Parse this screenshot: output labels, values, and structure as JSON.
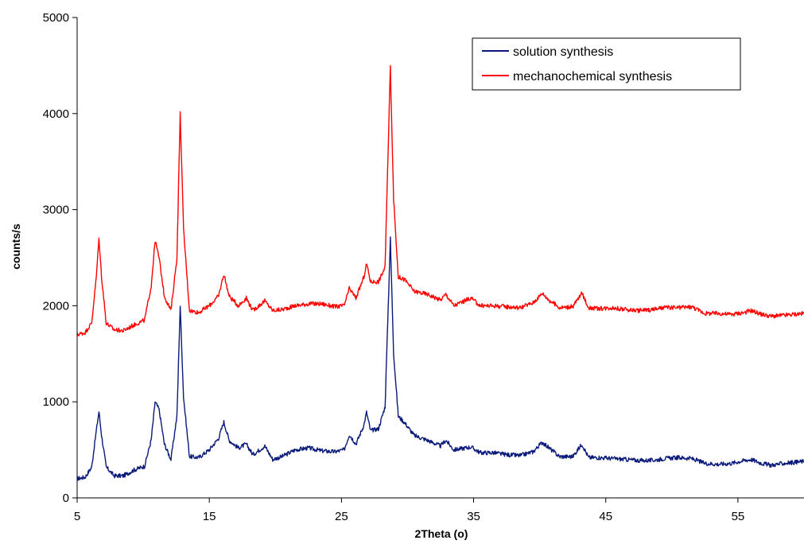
{
  "chart_data": {
    "type": "line",
    "xlabel": "2Theta (o)",
    "ylabel": "counts/s",
    "xlim": [
      5,
      60
    ],
    "ylim": [
      0,
      5000
    ],
    "x_ticks": [
      5,
      15,
      25,
      35,
      45,
      55
    ],
    "y_ticks": [
      0,
      1000,
      2000,
      3000,
      4000,
      5000
    ],
    "grid": false,
    "legend_position": "top-right",
    "series": [
      {
        "name": "solution synthesis",
        "color": "#0a1a7a",
        "points": [
          [
            5,
            200
          ],
          [
            5.6,
            215
          ],
          [
            6.1,
            320
          ],
          [
            6.45,
            700
          ],
          [
            6.65,
            900
          ],
          [
            6.85,
            650
          ],
          [
            7.2,
            320
          ],
          [
            7.8,
            230
          ],
          [
            8.5,
            230
          ],
          [
            9.3,
            290
          ],
          [
            10.1,
            330
          ],
          [
            10.6,
            600
          ],
          [
            10.9,
            1000
          ],
          [
            11.2,
            920
          ],
          [
            11.6,
            560
          ],
          [
            12.1,
            400
          ],
          [
            12.55,
            850
          ],
          [
            12.8,
            2000
          ],
          [
            13.05,
            1050
          ],
          [
            13.5,
            430
          ],
          [
            14.2,
            420
          ],
          [
            15,
            500
          ],
          [
            15.7,
            620
          ],
          [
            16.1,
            790
          ],
          [
            16.5,
            600
          ],
          [
            17.2,
            520
          ],
          [
            17.8,
            560
          ],
          [
            18.3,
            450
          ],
          [
            19.2,
            540
          ],
          [
            19.8,
            400
          ],
          [
            20.5,
            430
          ],
          [
            21.5,
            500
          ],
          [
            22.5,
            520
          ],
          [
            23.5,
            490
          ],
          [
            24.5,
            480
          ],
          [
            25.2,
            500
          ],
          [
            25.6,
            660
          ],
          [
            26.1,
            560
          ],
          [
            26.7,
            760
          ],
          [
            26.9,
            890
          ],
          [
            27.2,
            700
          ],
          [
            27.8,
            720
          ],
          [
            28.3,
            950
          ],
          [
            28.7,
            2700
          ],
          [
            28.95,
            1500
          ],
          [
            29.3,
            850
          ],
          [
            29.8,
            780
          ],
          [
            30.5,
            650
          ],
          [
            31.5,
            600
          ],
          [
            32.5,
            540
          ],
          [
            32.9,
            600
          ],
          [
            33.5,
            500
          ],
          [
            34.8,
            530
          ],
          [
            35.5,
            470
          ],
          [
            36.5,
            470
          ],
          [
            37.5,
            450
          ],
          [
            38.5,
            440
          ],
          [
            39.5,
            480
          ],
          [
            40.2,
            580
          ],
          [
            40.7,
            520
          ],
          [
            41.5,
            430
          ],
          [
            42.5,
            430
          ],
          [
            43.2,
            560
          ],
          [
            43.7,
            420
          ],
          [
            44.5,
            420
          ],
          [
            45.5,
            410
          ],
          [
            46.5,
            400
          ],
          [
            47.5,
            390
          ],
          [
            48.5,
            390
          ],
          [
            49.5,
            410
          ],
          [
            50.5,
            420
          ],
          [
            51.5,
            410
          ],
          [
            52.5,
            360
          ],
          [
            53.5,
            350
          ],
          [
            54.5,
            360
          ],
          [
            55.5,
            390
          ],
          [
            56,
            400
          ],
          [
            56.8,
            360
          ],
          [
            57.5,
            340
          ],
          [
            58.5,
            360
          ],
          [
            60,
            380
          ]
        ]
      },
      {
        "name": "mechanochemical synthesis",
        "color": "#ff0000",
        "points": [
          [
            5,
            1700
          ],
          [
            5.6,
            1720
          ],
          [
            6.1,
            1820
          ],
          [
            6.45,
            2300
          ],
          [
            6.65,
            2700
          ],
          [
            6.85,
            2300
          ],
          [
            7.2,
            1820
          ],
          [
            7.8,
            1750
          ],
          [
            8.5,
            1740
          ],
          [
            9.3,
            1800
          ],
          [
            10.1,
            1850
          ],
          [
            10.6,
            2200
          ],
          [
            10.9,
            2680
          ],
          [
            11.2,
            2500
          ],
          [
            11.6,
            2100
          ],
          [
            12.1,
            1950
          ],
          [
            12.55,
            2500
          ],
          [
            12.8,
            4000
          ],
          [
            13.05,
            2800
          ],
          [
            13.5,
            1950
          ],
          [
            14.2,
            1930
          ],
          [
            15,
            2000
          ],
          [
            15.7,
            2100
          ],
          [
            16.1,
            2330
          ],
          [
            16.5,
            2100
          ],
          [
            17.2,
            2000
          ],
          [
            17.8,
            2080
          ],
          [
            18.3,
            1950
          ],
          [
            19.2,
            2050
          ],
          [
            19.8,
            1950
          ],
          [
            20.5,
            1960
          ],
          [
            21.5,
            2000
          ],
          [
            22.5,
            2020
          ],
          [
            23.5,
            2020
          ],
          [
            24.5,
            1990
          ],
          [
            25.2,
            2000
          ],
          [
            25.6,
            2180
          ],
          [
            26.1,
            2080
          ],
          [
            26.7,
            2300
          ],
          [
            26.9,
            2440
          ],
          [
            27.2,
            2250
          ],
          [
            27.8,
            2250
          ],
          [
            28.3,
            2400
          ],
          [
            28.7,
            4500
          ],
          [
            28.95,
            3100
          ],
          [
            29.3,
            2300
          ],
          [
            29.8,
            2270
          ],
          [
            30.5,
            2150
          ],
          [
            31.5,
            2120
          ],
          [
            32.5,
            2060
          ],
          [
            32.9,
            2120
          ],
          [
            33.5,
            2000
          ],
          [
            34.8,
            2080
          ],
          [
            35.5,
            2000
          ],
          [
            36.5,
            2000
          ],
          [
            37.5,
            1990
          ],
          [
            38.5,
            1980
          ],
          [
            39.5,
            2030
          ],
          [
            40.2,
            2130
          ],
          [
            40.7,
            2060
          ],
          [
            41.5,
            1980
          ],
          [
            42.5,
            1990
          ],
          [
            43.2,
            2130
          ],
          [
            43.7,
            1980
          ],
          [
            44.5,
            1970
          ],
          [
            45.5,
            1980
          ],
          [
            46.5,
            1960
          ],
          [
            47.5,
            1950
          ],
          [
            48.5,
            1960
          ],
          [
            49.5,
            1980
          ],
          [
            50.5,
            1980
          ],
          [
            51.5,
            1990
          ],
          [
            52.5,
            1920
          ],
          [
            53.5,
            1920
          ],
          [
            54.5,
            1910
          ],
          [
            55.5,
            1930
          ],
          [
            56,
            1950
          ],
          [
            56.8,
            1910
          ],
          [
            57.5,
            1890
          ],
          [
            58.5,
            1900
          ],
          [
            60,
            1920
          ]
        ]
      }
    ]
  }
}
